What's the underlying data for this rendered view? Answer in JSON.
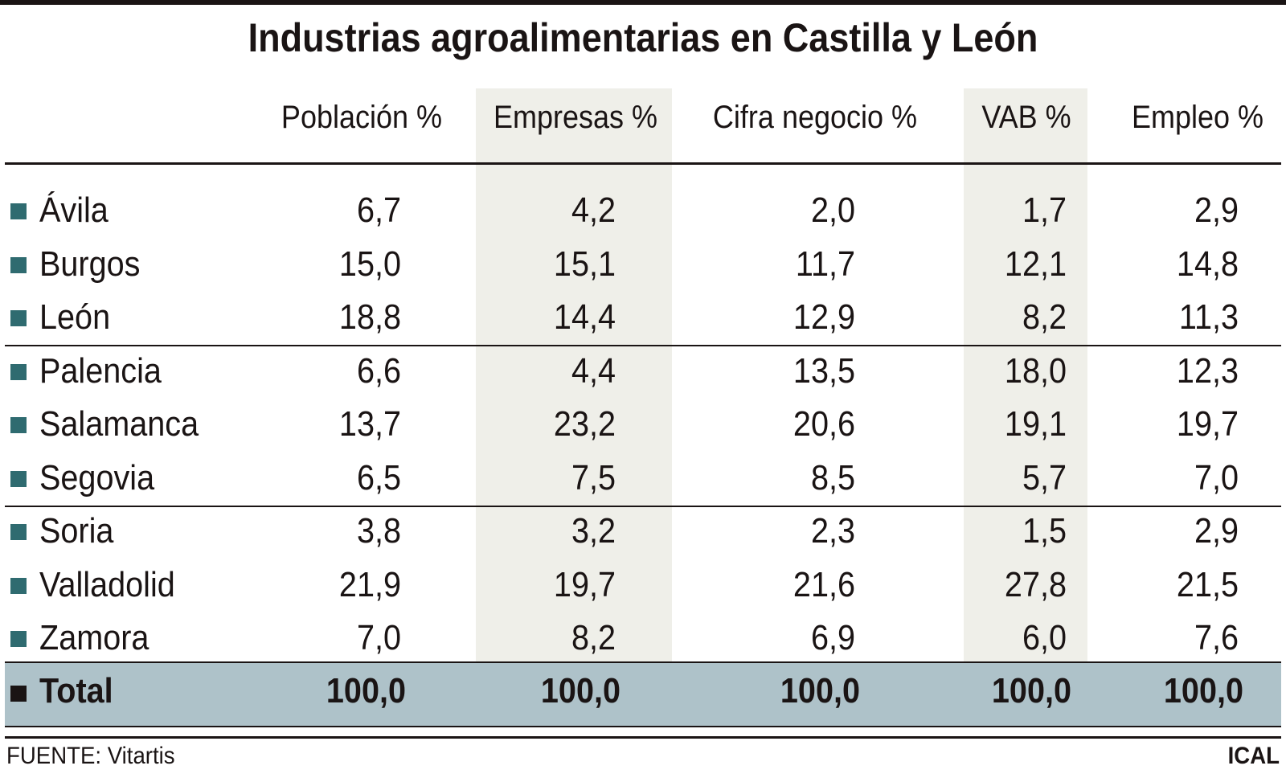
{
  "title": "Industrias agroalimentarias en Castilla y León",
  "columns": [
    "Población %",
    "Empresas %",
    "Cifra negocio %",
    "VAB %",
    "Empleo %"
  ],
  "rows": [
    {
      "name": "Ávila",
      "values": [
        "6,7",
        "4,2",
        "2,0",
        "1,7",
        "2,9"
      ]
    },
    {
      "name": "Burgos",
      "values": [
        "15,0",
        "15,1",
        "11,7",
        "12,1",
        "14,8"
      ]
    },
    {
      "name": "León",
      "values": [
        "18,8",
        "14,4",
        "12,9",
        "8,2",
        "11,3"
      ]
    },
    {
      "name": "Palencia",
      "values": [
        "6,6",
        "4,4",
        "13,5",
        "18,0",
        "12,3"
      ]
    },
    {
      "name": "Salamanca",
      "values": [
        "13,7",
        "23,2",
        "20,6",
        "19,1",
        "19,7"
      ]
    },
    {
      "name": "Segovia",
      "values": [
        "6,5",
        "7,5",
        "8,5",
        "5,7",
        "7,0"
      ]
    },
    {
      "name": "Soria",
      "values": [
        "3,8",
        "3,2",
        "2,3",
        "1,5",
        "2,9"
      ]
    },
    {
      "name": "Valladolid",
      "values": [
        "21,9",
        "19,7",
        "21,6",
        "27,8",
        "21,5"
      ]
    },
    {
      "name": "Zamora",
      "values": [
        "7,0",
        "8,2",
        "6,9",
        "6,0",
        "7,6"
      ]
    }
  ],
  "total": {
    "name": "Total",
    "values": [
      "100,0",
      "100,0",
      "100,0",
      "100,0",
      "100,0"
    ]
  },
  "footer": {
    "source": "FUENTE: Vitartis",
    "credit": "ICAL"
  },
  "colors": {
    "bullet": "#2f6b70",
    "total_band": "#aec2c9",
    "column_shade": "#efefe9"
  }
}
